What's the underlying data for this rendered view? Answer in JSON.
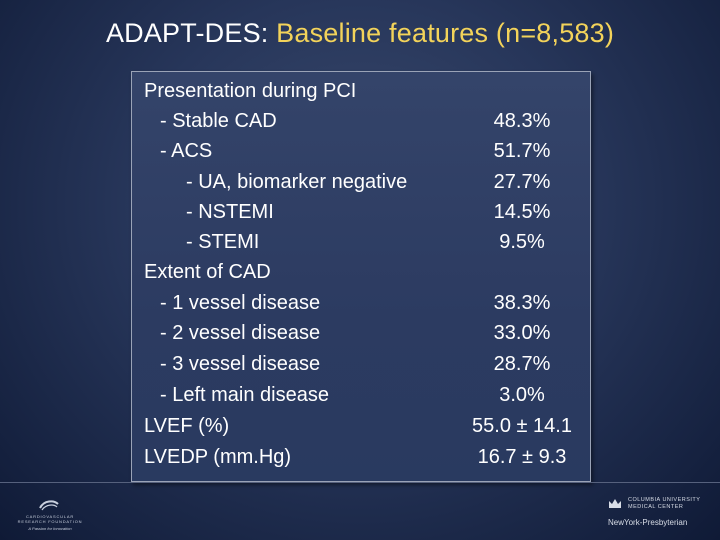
{
  "title": {
    "prefix": "ADAPT-DES:",
    "rest": " Baseline features (n=8,583)"
  },
  "rows": [
    {
      "label": "Presentation during PCI",
      "value": ""
    },
    {
      "label": "- Stable CAD",
      "value": "48.3%"
    },
    {
      "label": "- ACS",
      "value": "51.7%"
    },
    {
      "label": "- UA, biomarker negative",
      "value": "27.7%"
    },
    {
      "label": "- NSTEMI",
      "value": "14.5%"
    },
    {
      "label": "- STEMI",
      "value": "9.5%"
    },
    {
      "label": "Extent of CAD",
      "value": ""
    },
    {
      "label": "- 1 vessel disease",
      "value": "38.3%"
    },
    {
      "label": "- 2 vessel disease",
      "value": "33.0%"
    },
    {
      "label": "- 3 vessel disease",
      "value": "28.7%"
    },
    {
      "label": "- Left main disease",
      "value": "3.0%"
    },
    {
      "label": "LVEF (%)",
      "value": "55.0 ± 14.1"
    },
    {
      "label": "LVEDP (mm.Hg)",
      "value": "16.7 ± 9.3"
    }
  ],
  "footer": {
    "left_logo": {
      "name": "CARDIOVASCULAR RESEARCH FOUNDATION",
      "tagline": "A Passion for Innovation"
    },
    "right_logo": {
      "university": "COLUMBIA UNIVERSITY MEDICAL CENTER",
      "hospital": "NewYork-Presbyterian"
    }
  },
  "colors": {
    "background": "#27365a",
    "title_accent": "#f3d35a",
    "text": "#ffffff"
  },
  "icons": [
    "crf-logo-icon",
    "columbia-crown-icon"
  ]
}
